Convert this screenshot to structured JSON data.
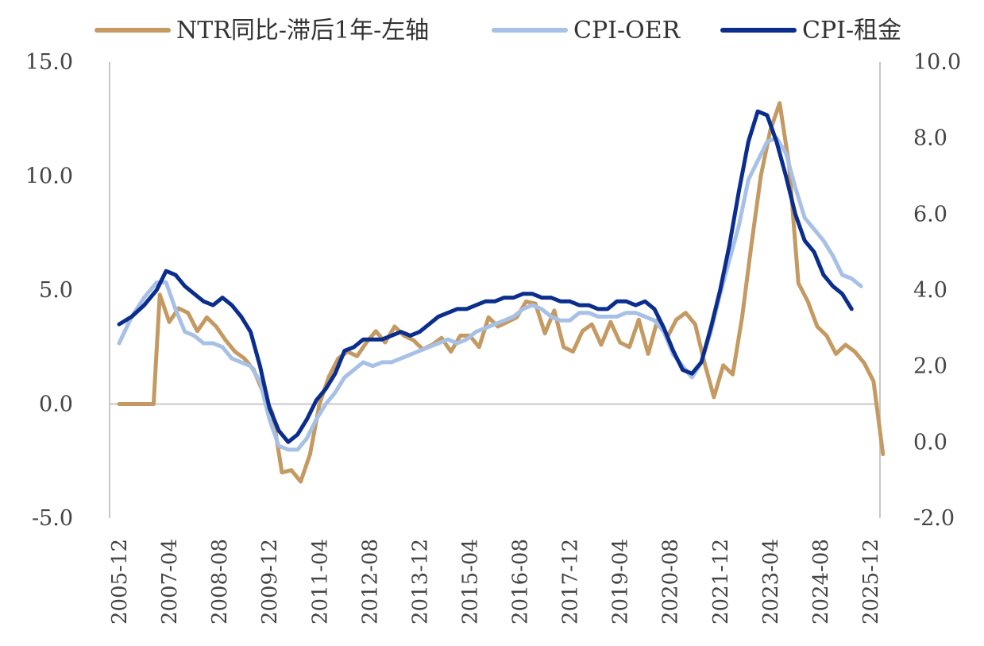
{
  "chart_data": {
    "type": "line",
    "title": "",
    "xlabel": "",
    "ylabel_left": "",
    "ylabel_right": "",
    "x_start": "2005-12",
    "x_end": "2025-12",
    "x_ticks": [
      "2005-12",
      "2007-04",
      "2008-08",
      "2009-12",
      "2011-04",
      "2012-08",
      "2013-12",
      "2015-04",
      "2016-08",
      "2017-12",
      "2019-04",
      "2020-08",
      "2021-12",
      "2023-04",
      "2024-08",
      "2025-12"
    ],
    "y_left": {
      "min": -5.0,
      "max": 15.0,
      "ticks": [
        "-5.0",
        "0.0",
        "5.0",
        "10.0",
        "15.0"
      ]
    },
    "y_right": {
      "min": -2.0,
      "max": 10.0,
      "ticks": [
        "-2.0",
        "0.0",
        "2.0",
        "4.0",
        "6.0",
        "8.0",
        "10.0"
      ]
    },
    "grid": false,
    "legend_position": "top",
    "series": [
      {
        "name": "NTR同比-滞后1年-左轴",
        "axis": "left",
        "color": "#C49A62",
        "points": [
          [
            "2005-12",
            0.0
          ],
          [
            "2006-04",
            0.0
          ],
          [
            "2006-08",
            0.0
          ],
          [
            "2006-11",
            0.0
          ],
          [
            "2007-01",
            4.8
          ],
          [
            "2007-04",
            3.6
          ],
          [
            "2007-07",
            4.2
          ],
          [
            "2007-10",
            4.0
          ],
          [
            "2008-01",
            3.2
          ],
          [
            "2008-04",
            3.8
          ],
          [
            "2008-07",
            3.4
          ],
          [
            "2008-10",
            2.8
          ],
          [
            "2009-01",
            2.3
          ],
          [
            "2009-04",
            2.0
          ],
          [
            "2009-07",
            1.5
          ],
          [
            "2009-10",
            0.5
          ],
          [
            "2010-01",
            -0.4
          ],
          [
            "2010-04",
            -3.0
          ],
          [
            "2010-07",
            -2.9
          ],
          [
            "2010-10",
            -3.4
          ],
          [
            "2011-01",
            -2.2
          ],
          [
            "2011-04",
            0.0
          ],
          [
            "2011-07",
            1.2
          ],
          [
            "2011-10",
            2.0
          ],
          [
            "2012-01",
            2.3
          ],
          [
            "2012-04",
            2.1
          ],
          [
            "2012-07",
            2.7
          ],
          [
            "2012-10",
            3.2
          ],
          [
            "2013-01",
            2.7
          ],
          [
            "2013-04",
            3.4
          ],
          [
            "2013-07",
            3.0
          ],
          [
            "2013-10",
            2.8
          ],
          [
            "2014-01",
            2.4
          ],
          [
            "2014-04",
            2.6
          ],
          [
            "2014-07",
            2.9
          ],
          [
            "2014-10",
            2.3
          ],
          [
            "2015-01",
            3.0
          ],
          [
            "2015-04",
            3.0
          ],
          [
            "2015-07",
            2.5
          ],
          [
            "2015-10",
            3.8
          ],
          [
            "2016-01",
            3.4
          ],
          [
            "2016-04",
            3.6
          ],
          [
            "2016-07",
            3.8
          ],
          [
            "2016-10",
            4.5
          ],
          [
            "2017-01",
            4.4
          ],
          [
            "2017-04",
            3.1
          ],
          [
            "2017-07",
            4.1
          ],
          [
            "2017-10",
            2.5
          ],
          [
            "2018-01",
            2.3
          ],
          [
            "2018-04",
            3.2
          ],
          [
            "2018-07",
            3.5
          ],
          [
            "2018-10",
            2.6
          ],
          [
            "2019-01",
            3.6
          ],
          [
            "2019-04",
            2.7
          ],
          [
            "2019-07",
            2.5
          ],
          [
            "2019-10",
            3.7
          ],
          [
            "2020-01",
            2.2
          ],
          [
            "2020-04",
            3.7
          ],
          [
            "2020-07",
            2.9
          ],
          [
            "2020-10",
            3.7
          ],
          [
            "2021-01",
            4.0
          ],
          [
            "2021-04",
            3.5
          ],
          [
            "2021-07",
            1.8
          ],
          [
            "2021-10",
            0.3
          ],
          [
            "2022-01",
            1.7
          ],
          [
            "2022-04",
            1.3
          ],
          [
            "2022-07",
            3.8
          ],
          [
            "2022-10",
            7.0
          ],
          [
            "2023-01",
            10.0
          ],
          [
            "2023-04",
            12.0
          ],
          [
            "2023-07",
            13.2
          ],
          [
            "2023-10",
            10.5
          ],
          [
            "2024-01",
            5.3
          ],
          [
            "2024-04",
            4.5
          ],
          [
            "2024-07",
            3.4
          ],
          [
            "2024-10",
            3.0
          ],
          [
            "2025-01",
            2.2
          ],
          [
            "2025-04",
            2.6
          ],
          [
            "2025-07",
            2.3
          ],
          [
            "2025-10",
            1.8
          ],
          [
            "2026-01",
            1.0
          ],
          [
            "2026-04",
            -2.2
          ]
        ]
      },
      {
        "name": "CPI-OER",
        "axis": "right",
        "color": "#A7C1E6",
        "points": [
          [
            "2005-12",
            2.6
          ],
          [
            "2006-04",
            3.3
          ],
          [
            "2006-08",
            3.8
          ],
          [
            "2006-12",
            4.2
          ],
          [
            "2007-03",
            4.2
          ],
          [
            "2007-06",
            3.5
          ],
          [
            "2007-09",
            2.9
          ],
          [
            "2007-12",
            2.8
          ],
          [
            "2008-03",
            2.6
          ],
          [
            "2008-06",
            2.6
          ],
          [
            "2008-09",
            2.5
          ],
          [
            "2008-12",
            2.2
          ],
          [
            "2009-03",
            2.1
          ],
          [
            "2009-06",
            2.0
          ],
          [
            "2009-09",
            1.6
          ],
          [
            "2009-12",
            0.6
          ],
          [
            "2010-03",
            -0.1
          ],
          [
            "2010-06",
            -0.2
          ],
          [
            "2010-09",
            -0.2
          ],
          [
            "2010-12",
            0.1
          ],
          [
            "2011-03",
            0.6
          ],
          [
            "2011-06",
            1.0
          ],
          [
            "2011-09",
            1.3
          ],
          [
            "2011-12",
            1.7
          ],
          [
            "2012-03",
            1.9
          ],
          [
            "2012-06",
            2.1
          ],
          [
            "2012-09",
            2.0
          ],
          [
            "2012-12",
            2.1
          ],
          [
            "2013-03",
            2.1
          ],
          [
            "2013-06",
            2.2
          ],
          [
            "2013-09",
            2.3
          ],
          [
            "2013-12",
            2.4
          ],
          [
            "2014-03",
            2.5
          ],
          [
            "2014-06",
            2.6
          ],
          [
            "2014-09",
            2.7
          ],
          [
            "2014-12",
            2.6
          ],
          [
            "2015-03",
            2.7
          ],
          [
            "2015-06",
            2.9
          ],
          [
            "2015-09",
            3.0
          ],
          [
            "2015-12",
            3.1
          ],
          [
            "2016-03",
            3.2
          ],
          [
            "2016-06",
            3.3
          ],
          [
            "2016-09",
            3.5
          ],
          [
            "2016-12",
            3.6
          ],
          [
            "2017-03",
            3.5
          ],
          [
            "2017-06",
            3.3
          ],
          [
            "2017-09",
            3.2
          ],
          [
            "2017-12",
            3.2
          ],
          [
            "2018-03",
            3.4
          ],
          [
            "2018-06",
            3.4
          ],
          [
            "2018-09",
            3.3
          ],
          [
            "2018-12",
            3.3
          ],
          [
            "2019-03",
            3.3
          ],
          [
            "2019-06",
            3.4
          ],
          [
            "2019-09",
            3.4
          ],
          [
            "2019-12",
            3.3
          ],
          [
            "2020-03",
            3.2
          ],
          [
            "2020-06",
            2.9
          ],
          [
            "2020-09",
            2.3
          ],
          [
            "2020-12",
            2.0
          ],
          [
            "2021-03",
            1.7
          ],
          [
            "2021-06",
            2.1
          ],
          [
            "2021-09",
            2.9
          ],
          [
            "2021-12",
            3.9
          ],
          [
            "2022-03",
            4.8
          ],
          [
            "2022-06",
            5.7
          ],
          [
            "2022-09",
            6.9
          ],
          [
            "2022-12",
            7.4
          ],
          [
            "2023-03",
            7.9
          ],
          [
            "2023-06",
            8.0
          ],
          [
            "2023-09",
            7.6
          ],
          [
            "2023-12",
            6.7
          ],
          [
            "2024-03",
            5.9
          ],
          [
            "2024-06",
            5.6
          ],
          [
            "2024-09",
            5.3
          ],
          [
            "2024-12",
            4.9
          ],
          [
            "2025-03",
            4.4
          ],
          [
            "2025-06",
            4.3
          ],
          [
            "2025-09",
            4.1
          ]
        ]
      },
      {
        "name": "CPI-租金",
        "axis": "right",
        "color": "#0B2E8E",
        "points": [
          [
            "2005-12",
            3.1
          ],
          [
            "2006-04",
            3.3
          ],
          [
            "2006-08",
            3.6
          ],
          [
            "2006-12",
            4.0
          ],
          [
            "2007-03",
            4.5
          ],
          [
            "2007-06",
            4.4
          ],
          [
            "2007-09",
            4.1
          ],
          [
            "2007-12",
            3.9
          ],
          [
            "2008-03",
            3.7
          ],
          [
            "2008-06",
            3.6
          ],
          [
            "2008-09",
            3.8
          ],
          [
            "2008-12",
            3.6
          ],
          [
            "2009-03",
            3.3
          ],
          [
            "2009-06",
            2.9
          ],
          [
            "2009-09",
            2.0
          ],
          [
            "2009-12",
            0.9
          ],
          [
            "2010-03",
            0.3
          ],
          [
            "2010-06",
            0.0
          ],
          [
            "2010-09",
            0.2
          ],
          [
            "2010-12",
            0.6
          ],
          [
            "2011-03",
            1.1
          ],
          [
            "2011-06",
            1.4
          ],
          [
            "2011-09",
            1.8
          ],
          [
            "2011-12",
            2.4
          ],
          [
            "2012-03",
            2.5
          ],
          [
            "2012-06",
            2.7
          ],
          [
            "2012-09",
            2.7
          ],
          [
            "2012-12",
            2.7
          ],
          [
            "2013-03",
            2.8
          ],
          [
            "2013-06",
            2.9
          ],
          [
            "2013-09",
            2.8
          ],
          [
            "2013-12",
            2.9
          ],
          [
            "2014-03",
            3.1
          ],
          [
            "2014-06",
            3.3
          ],
          [
            "2014-09",
            3.4
          ],
          [
            "2014-12",
            3.5
          ],
          [
            "2015-03",
            3.5
          ],
          [
            "2015-06",
            3.6
          ],
          [
            "2015-09",
            3.7
          ],
          [
            "2015-12",
            3.7
          ],
          [
            "2016-03",
            3.8
          ],
          [
            "2016-06",
            3.8
          ],
          [
            "2016-09",
            3.9
          ],
          [
            "2016-12",
            3.9
          ],
          [
            "2017-03",
            3.8
          ],
          [
            "2017-06",
            3.8
          ],
          [
            "2017-09",
            3.7
          ],
          [
            "2017-12",
            3.7
          ],
          [
            "2018-03",
            3.6
          ],
          [
            "2018-06",
            3.6
          ],
          [
            "2018-09",
            3.5
          ],
          [
            "2018-12",
            3.5
          ],
          [
            "2019-03",
            3.7
          ],
          [
            "2019-06",
            3.7
          ],
          [
            "2019-09",
            3.6
          ],
          [
            "2019-12",
            3.7
          ],
          [
            "2020-03",
            3.5
          ],
          [
            "2020-06",
            3.0
          ],
          [
            "2020-09",
            2.4
          ],
          [
            "2020-12",
            1.9
          ],
          [
            "2021-03",
            1.8
          ],
          [
            "2021-06",
            2.1
          ],
          [
            "2021-09",
            3.0
          ],
          [
            "2021-12",
            4.0
          ],
          [
            "2022-03",
            5.2
          ],
          [
            "2022-06",
            6.6
          ],
          [
            "2022-09",
            7.9
          ],
          [
            "2022-12",
            8.7
          ],
          [
            "2023-03",
            8.6
          ],
          [
            "2023-06",
            7.9
          ],
          [
            "2023-09",
            7.0
          ],
          [
            "2023-12",
            6.0
          ],
          [
            "2024-03",
            5.3
          ],
          [
            "2024-06",
            5.0
          ],
          [
            "2024-09",
            4.4
          ],
          [
            "2024-12",
            4.1
          ],
          [
            "2025-03",
            3.9
          ],
          [
            "2025-06",
            3.5
          ]
        ]
      }
    ]
  }
}
